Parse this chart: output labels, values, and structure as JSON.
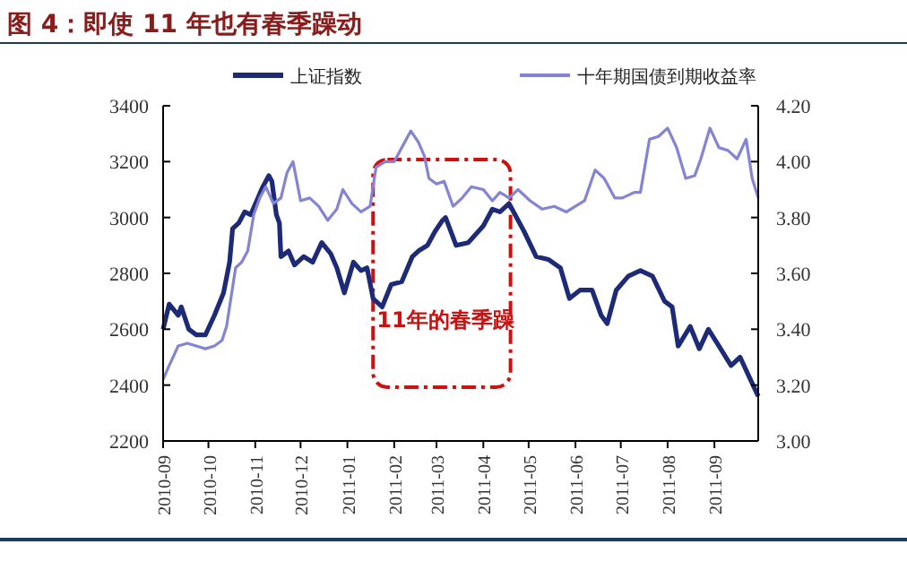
{
  "chart_data": {
    "type": "line",
    "title": "图 4：即使 11 年也有春季躁动",
    "legend": "top",
    "grid": false,
    "line_style": "solid",
    "xlim": [
      "2010-09-01",
      "2011-09-30"
    ],
    "xticks": [
      "2010-09",
      "2010-10",
      "2010-11",
      "2010-12",
      "2011-01",
      "2011-02",
      "2011-03",
      "2011-04",
      "2011-05",
      "2011-06",
      "2011-07",
      "2011-08",
      "2011-09"
    ],
    "ylim": [
      2200,
      3400
    ],
    "yticks": [
      2200,
      2400,
      2600,
      2800,
      3000,
      3200,
      3400
    ],
    "y2lim": [
      3.0,
      4.2
    ],
    "y2ticks": [
      {
        "value": 3.0,
        "label": "3.00"
      },
      {
        "value": 3.2,
        "label": "3.20"
      },
      {
        "value": 3.4,
        "label": "3.40"
      },
      {
        "value": 3.6,
        "label": "3.60"
      },
      {
        "value": 3.8,
        "label": "3.80"
      },
      {
        "value": 4.0,
        "label": "4.00"
      },
      {
        "value": 4.2,
        "label": "4.20"
      }
    ],
    "bands": [
      {
        "axis": "x",
        "from": "2011-01-18",
        "to": "2011-04-19",
        "label": "11年的春季躁",
        "color": "#cc1111"
      }
    ],
    "series": [
      {
        "name": "上证指数",
        "color": "#1c2a78",
        "x": [
          "2010-09-01",
          "2010-09-05",
          "2010-09-11",
          "2010-09-13",
          "2010-09-18",
          "2010-09-23",
          "2010-09-29",
          "2010-10-05",
          "2010-10-11",
          "2010-10-15",
          "2010-10-17",
          "2010-10-21",
          "2010-10-25",
          "2010-10-29",
          "2010-11-02",
          "2010-11-06",
          "2010-11-10",
          "2010-11-12",
          "2010-11-15",
          "2010-11-17",
          "2010-11-18",
          "2010-11-23",
          "2010-11-27",
          "2010-12-03",
          "2010-12-09",
          "2010-12-15",
          "2010-12-21",
          "2010-12-25",
          "2010-12-30",
          "2011-01-05",
          "2011-01-10",
          "2011-01-14",
          "2011-01-18",
          "2011-01-24",
          "2011-01-30",
          "2011-02-06",
          "2011-02-13",
          "2011-02-17",
          "2011-02-23",
          "2011-02-28",
          "2011-03-05",
          "2011-03-07",
          "2011-03-14",
          "2011-03-22",
          "2011-04-01",
          "2011-04-07",
          "2011-04-12",
          "2011-04-18",
          "2011-04-28",
          "2011-05-06",
          "2011-05-14",
          "2011-05-22",
          "2011-05-28",
          "2011-06-04",
          "2011-06-12",
          "2011-06-18",
          "2011-06-22",
          "2011-06-28",
          "2011-07-06",
          "2011-07-14",
          "2011-07-22",
          "2011-07-30",
          "2011-08-04",
          "2011-08-08",
          "2011-08-16",
          "2011-08-22",
          "2011-08-28",
          "2011-09-04",
          "2011-09-12",
          "2011-09-18",
          "2011-09-24",
          "2011-09-30"
        ],
        "values": [
          2600,
          2690,
          2650,
          2680,
          2600,
          2580,
          2580,
          2650,
          2730,
          2840,
          2960,
          2980,
          3020,
          3010,
          3060,
          3110,
          3150,
          3130,
          3010,
          2980,
          2860,
          2880,
          2830,
          2860,
          2840,
          2910,
          2870,
          2820,
          2730,
          2840,
          2810,
          2820,
          2710,
          2680,
          2760,
          2770,
          2860,
          2880,
          2900,
          2950,
          2990,
          3000,
          2900,
          2910,
          2970,
          3030,
          3020,
          3050,
          2950,
          2860,
          2850,
          2820,
          2710,
          2740,
          2740,
          2650,
          2620,
          2740,
          2790,
          2810,
          2790,
          2700,
          2680,
          2540,
          2610,
          2530,
          2600,
          2540,
          2470,
          2500,
          2430,
          2360
        ]
      },
      {
        "name": "十年期国债到期收益率",
        "color": "#8484d6",
        "axis": "y2",
        "x": [
          "2010-09-01",
          "2010-09-05",
          "2010-09-11",
          "2010-09-17",
          "2010-09-23",
          "2010-09-29",
          "2010-10-05",
          "2010-10-10",
          "2010-10-13",
          "2010-10-19",
          "2010-10-23",
          "2010-10-27",
          "2010-10-31",
          "2010-11-04",
          "2010-11-08",
          "2010-11-13",
          "2010-11-18",
          "2010-11-22",
          "2010-11-26",
          "2010-12-01",
          "2010-12-07",
          "2010-12-13",
          "2010-12-19",
          "2010-12-25",
          "2010-12-29",
          "2011-01-04",
          "2011-01-10",
          "2011-01-16",
          "2011-01-20",
          "2011-01-26",
          "2011-02-01",
          "2011-02-07",
          "2011-02-12",
          "2011-02-17",
          "2011-02-21",
          "2011-02-24",
          "2011-03-01",
          "2011-03-06",
          "2011-03-12",
          "2011-03-18",
          "2011-03-24",
          "2011-04-01",
          "2011-04-07",
          "2011-04-12",
          "2011-04-18",
          "2011-04-24",
          "2011-05-02",
          "2011-05-10",
          "2011-05-18",
          "2011-05-26",
          "2011-06-01",
          "2011-06-07",
          "2011-06-14",
          "2011-06-20",
          "2011-06-27",
          "2011-07-02",
          "2011-07-10",
          "2011-07-14",
          "2011-07-20",
          "2011-07-26",
          "2011-08-01",
          "2011-08-07",
          "2011-08-13",
          "2011-08-19",
          "2011-08-23",
          "2011-08-29",
          "2011-09-04",
          "2011-09-10",
          "2011-09-16",
          "2011-09-22",
          "2011-09-26",
          "2011-09-30"
        ],
        "values": [
          3.22,
          3.27,
          3.34,
          3.35,
          3.34,
          3.33,
          3.34,
          3.36,
          3.41,
          3.62,
          3.64,
          3.68,
          3.81,
          3.87,
          3.91,
          3.85,
          3.87,
          3.96,
          4.0,
          3.86,
          3.87,
          3.84,
          3.79,
          3.83,
          3.9,
          3.85,
          3.82,
          3.84,
          3.98,
          4.0,
          4.0,
          4.06,
          4.11,
          4.07,
          4.02,
          3.94,
          3.92,
          3.93,
          3.84,
          3.87,
          3.91,
          3.9,
          3.86,
          3.89,
          3.87,
          3.9,
          3.86,
          3.83,
          3.84,
          3.82,
          3.84,
          3.86,
          3.97,
          3.94,
          3.87,
          3.87,
          3.89,
          3.89,
          4.08,
          4.09,
          4.12,
          4.05,
          3.94,
          3.95,
          4.01,
          4.12,
          4.05,
          4.04,
          4.01,
          4.08,
          3.94,
          3.87
        ]
      }
    ]
  }
}
